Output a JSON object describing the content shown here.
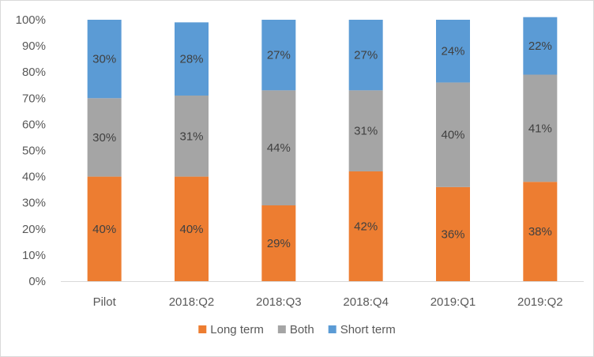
{
  "chart_data": {
    "type": "bar",
    "stacked": true,
    "percent_stacked": true,
    "categories": [
      "Pilot",
      "2018:Q2",
      "2018:Q3",
      "2018:Q4",
      "2019:Q1",
      "2019:Q2"
    ],
    "series": [
      {
        "name": "Long term",
        "color": "#ed7d31",
        "values": [
          40,
          40,
          29,
          42,
          36,
          38
        ]
      },
      {
        "name": "Both",
        "color": "#a5a5a5",
        "values": [
          30,
          31,
          44,
          31,
          40,
          41
        ]
      },
      {
        "name": "Short term",
        "color": "#5b9bd5",
        "values": [
          30,
          28,
          27,
          27,
          24,
          22
        ]
      }
    ],
    "y_ticks": [
      "0%",
      "10%",
      "20%",
      "30%",
      "40%",
      "50%",
      "60%",
      "70%",
      "80%",
      "90%",
      "100%"
    ],
    "ylim": [
      0,
      100
    ],
    "grid": false,
    "legend_position": "bottom",
    "title": "",
    "xlabel": "",
    "ylabel": ""
  }
}
